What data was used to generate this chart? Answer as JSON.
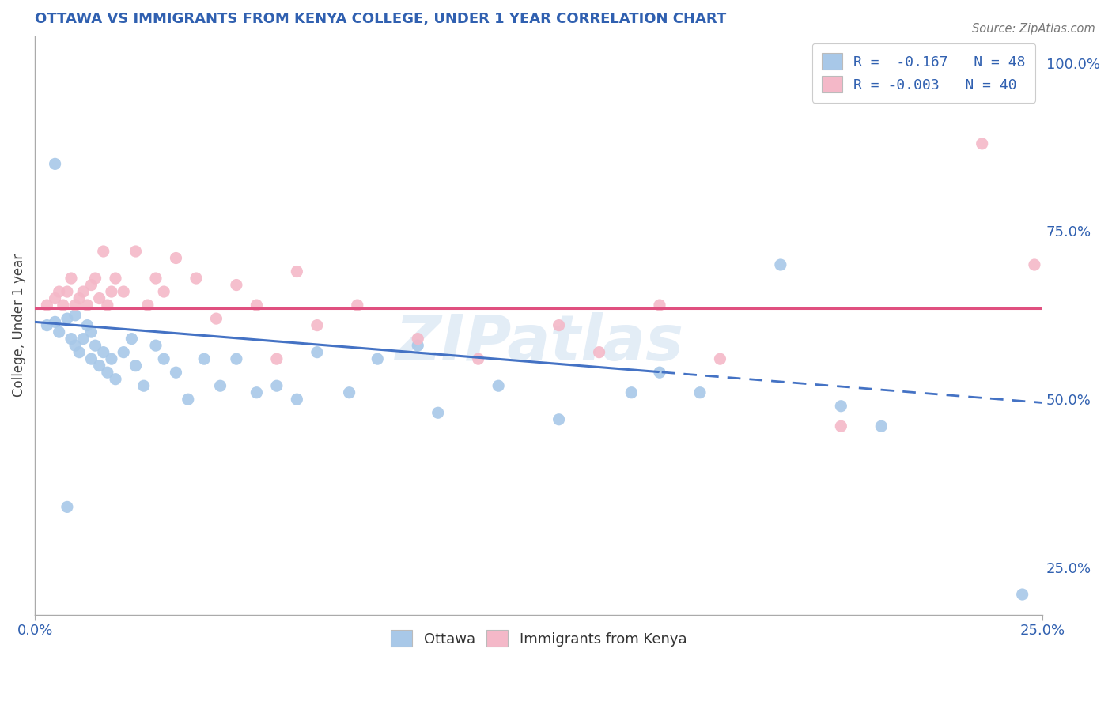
{
  "title": "OTTAWA VS IMMIGRANTS FROM KENYA COLLEGE, UNDER 1 YEAR CORRELATION CHART",
  "source_text": "Source: ZipAtlas.com",
  "watermark": "ZIPatlas",
  "ylabel_label": "College, Under 1 year",
  "legend_1": "R =  -0.167   N = 48",
  "legend_2": "R = -0.003   N = 40",
  "blue_color": "#a8c8e8",
  "pink_color": "#f4b8c8",
  "trend_blue": "#4472c4",
  "trend_pink": "#e05080",
  "bg_color": "#ffffff",
  "grid_color": "#c8c8d8",
  "title_color": "#3060b0",
  "axis_color": "#3060b0",
  "source_color": "#777777",
  "xlim": [
    0.0,
    0.25
  ],
  "ylim": [
    0.18,
    1.04
  ],
  "trend_start": 0.0,
  "trend_solid_end": 0.155,
  "trend_end": 0.25,
  "blue_trend_y0": 0.615,
  "blue_trend_y1": 0.495,
  "pink_trend_y": 0.635,
  "ottawa_x": [
    0.003,
    0.005,
    0.006,
    0.008,
    0.009,
    0.01,
    0.01,
    0.011,
    0.012,
    0.013,
    0.014,
    0.014,
    0.015,
    0.016,
    0.017,
    0.018,
    0.019,
    0.02,
    0.022,
    0.024,
    0.025,
    0.027,
    0.03,
    0.032,
    0.035,
    0.038,
    0.042,
    0.046,
    0.05,
    0.055,
    0.06,
    0.065,
    0.07,
    0.078,
    0.085,
    0.095,
    0.1,
    0.115,
    0.13,
    0.148,
    0.155,
    0.165,
    0.185,
    0.2,
    0.21,
    0.245,
    0.005,
    0.008
  ],
  "ottawa_y": [
    0.61,
    0.615,
    0.6,
    0.62,
    0.59,
    0.58,
    0.625,
    0.57,
    0.59,
    0.61,
    0.56,
    0.6,
    0.58,
    0.55,
    0.57,
    0.54,
    0.56,
    0.53,
    0.57,
    0.59,
    0.55,
    0.52,
    0.58,
    0.56,
    0.54,
    0.5,
    0.56,
    0.52,
    0.56,
    0.51,
    0.52,
    0.5,
    0.57,
    0.51,
    0.56,
    0.58,
    0.48,
    0.52,
    0.47,
    0.51,
    0.54,
    0.51,
    0.7,
    0.49,
    0.46,
    0.21,
    0.85,
    0.34
  ],
  "kenya_x": [
    0.003,
    0.005,
    0.006,
    0.007,
    0.008,
    0.009,
    0.01,
    0.011,
    0.012,
    0.013,
    0.014,
    0.015,
    0.016,
    0.017,
    0.018,
    0.019,
    0.02,
    0.022,
    0.025,
    0.028,
    0.03,
    0.032,
    0.035,
    0.04,
    0.045,
    0.05,
    0.055,
    0.06,
    0.065,
    0.07,
    0.08,
    0.095,
    0.11,
    0.13,
    0.14,
    0.155,
    0.17,
    0.2,
    0.235,
    0.248
  ],
  "kenya_y": [
    0.64,
    0.65,
    0.66,
    0.64,
    0.66,
    0.68,
    0.64,
    0.65,
    0.66,
    0.64,
    0.67,
    0.68,
    0.65,
    0.72,
    0.64,
    0.66,
    0.68,
    0.66,
    0.72,
    0.64,
    0.68,
    0.66,
    0.71,
    0.68,
    0.62,
    0.67,
    0.64,
    0.56,
    0.69,
    0.61,
    0.64,
    0.59,
    0.56,
    0.61,
    0.57,
    0.64,
    0.56,
    0.46,
    0.88,
    0.7
  ]
}
